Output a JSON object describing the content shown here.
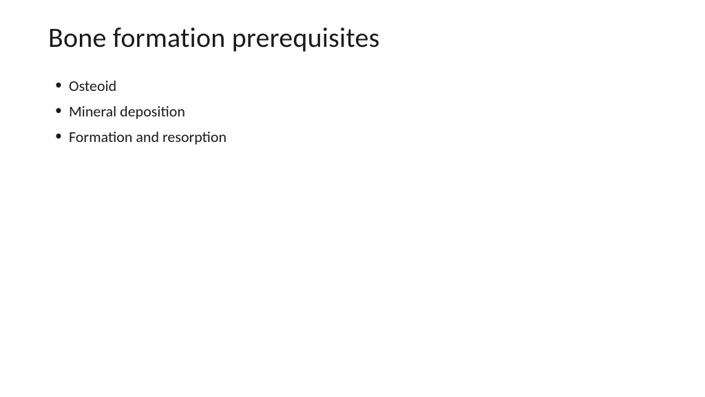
{
  "slide": {
    "title": "Bone formation prerequisites",
    "bullets": [
      "Osteoid",
      "Mineral deposition",
      "Formation and resorption"
    ],
    "background_color": "#ffffff",
    "text_color": "#1a1a1a",
    "title_fontsize": 40,
    "body_fontsize": 22,
    "font_family": "Calibri"
  }
}
